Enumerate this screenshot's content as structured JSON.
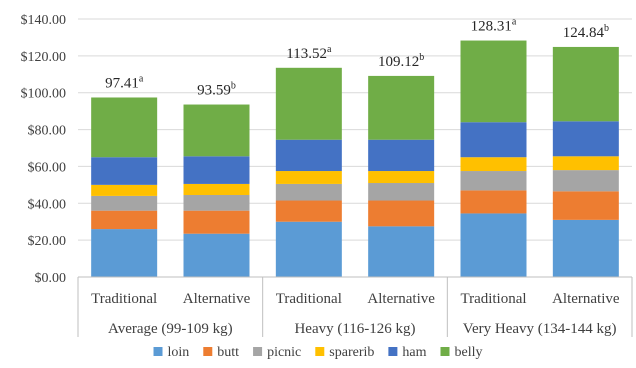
{
  "colors": {
    "loin": "#5b9bd5",
    "butt": "#ed7d31",
    "picnic": "#a5a5a5",
    "sparerib": "#ffc000",
    "ham": "#4472c4",
    "belly": "#70ad47"
  },
  "chart_data": {
    "type": "bar",
    "stacked": true,
    "title": "",
    "xlabel": "",
    "ylabel": "",
    "ylim": [
      0,
      140
    ],
    "ytick_step": 20,
    "ytick_labels": [
      "$0.00",
      "$20.00",
      "$40.00",
      "$60.00",
      "$80.00",
      "$100.00",
      "$120.00",
      "$140.00"
    ],
    "grid": true,
    "legend_position": "bottom",
    "groups": [
      {
        "label": "Average (99-109 kg)"
      },
      {
        "label": "Heavy (116-126 kg)"
      },
      {
        "label": "Very Heavy (134-144 kg)"
      }
    ],
    "categories": [
      "Traditional",
      "Alternative",
      "Traditional",
      "Alternative",
      "Traditional",
      "Alternative"
    ],
    "totals": [
      {
        "value": "97.41",
        "sup": "a"
      },
      {
        "value": "93.59",
        "sup": "b"
      },
      {
        "value": "113.52",
        "sup": "a"
      },
      {
        "value": "109.12",
        "sup": "b"
      },
      {
        "value": "128.31",
        "sup": "a"
      },
      {
        "value": "124.84",
        "sup": "b"
      }
    ],
    "series": [
      {
        "name": "loin",
        "values": [
          26.0,
          23.5,
          30.0,
          27.5,
          34.5,
          31.0
        ]
      },
      {
        "name": "butt",
        "values": [
          10.0,
          12.5,
          11.5,
          14.0,
          12.5,
          15.5
        ]
      },
      {
        "name": "picnic",
        "values": [
          8.0,
          8.5,
          9.0,
          9.5,
          10.5,
          11.5
        ]
      },
      {
        "name": "sparerib",
        "values": [
          6.0,
          6.0,
          7.0,
          6.5,
          7.5,
          7.5
        ]
      },
      {
        "name": "ham",
        "values": [
          15.0,
          15.0,
          17.0,
          17.0,
          19.0,
          19.0
        ]
      },
      {
        "name": "belly",
        "values": [
          32.41,
          28.09,
          39.02,
          34.62,
          44.31,
          40.34
        ]
      }
    ]
  }
}
